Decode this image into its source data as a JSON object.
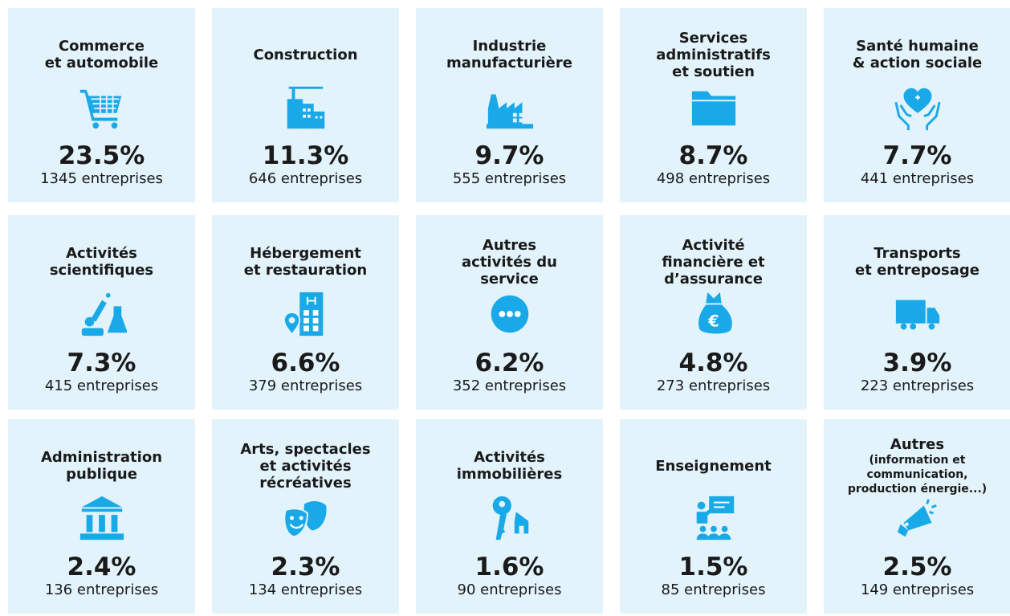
{
  "cards": [
    {
      "title": [
        "Commerce",
        "et automobile"
      ],
      "percent": "23.5%",
      "count": "1345 entreprises"
    },
    {
      "title": [
        "Construction"
      ],
      "percent": "11.3%",
      "count": "646 entreprises"
    },
    {
      "title": [
        "Industrie",
        "manufacturière"
      ],
      "percent": "9.7%",
      "count": "555 entreprises"
    },
    {
      "title": [
        "Services",
        "administratifs",
        "et soutien"
      ],
      "percent": "8.7%",
      "count": "498 entreprises"
    },
    {
      "title": [
        "Santé humaine",
        "& action sociale"
      ],
      "percent": "7.7%",
      "count": "441 entreprises"
    },
    {
      "title": [
        "Activités",
        "scientifiques"
      ],
      "percent": "7.3%",
      "count": "415 entreprises"
    },
    {
      "title": [
        "Hébergement",
        "et restauration"
      ],
      "percent": "6.6%",
      "count": "379 entreprises"
    },
    {
      "title": [
        "Autres",
        "activités du",
        "service"
      ],
      "percent": "6.2%",
      "count": "352 entreprises"
    },
    {
      "title": [
        "Activité",
        "financière et",
        "d’assurance"
      ],
      "percent": "4.8%",
      "count": "273 entreprises"
    },
    {
      "title": [
        "Transports",
        "et entreposage"
      ],
      "percent": "3.9%",
      "count": "223 entreprises"
    },
    {
      "title": [
        "Administration",
        "publique"
      ],
      "percent": "2.4%",
      "count": "136 entreprises"
    },
    {
      "title": [
        "Arts, spectacles",
        "et activités",
        "récréatives"
      ],
      "percent": "2.3%",
      "count": "134 entreprises"
    },
    {
      "title": [
        "Activités",
        "immobilières"
      ],
      "percent": "1.6%",
      "count": "90 entreprises"
    },
    {
      "title": [
        "Enseignement"
      ],
      "percent": "1.5%",
      "count": "85 entreprises"
    },
    {
      "title": [
        "Autres",
        "(information et",
        "communication,",
        "production énergie...)"
      ],
      "percent": "2.5%",
      "count": "149 entreprises"
    }
  ]
}
